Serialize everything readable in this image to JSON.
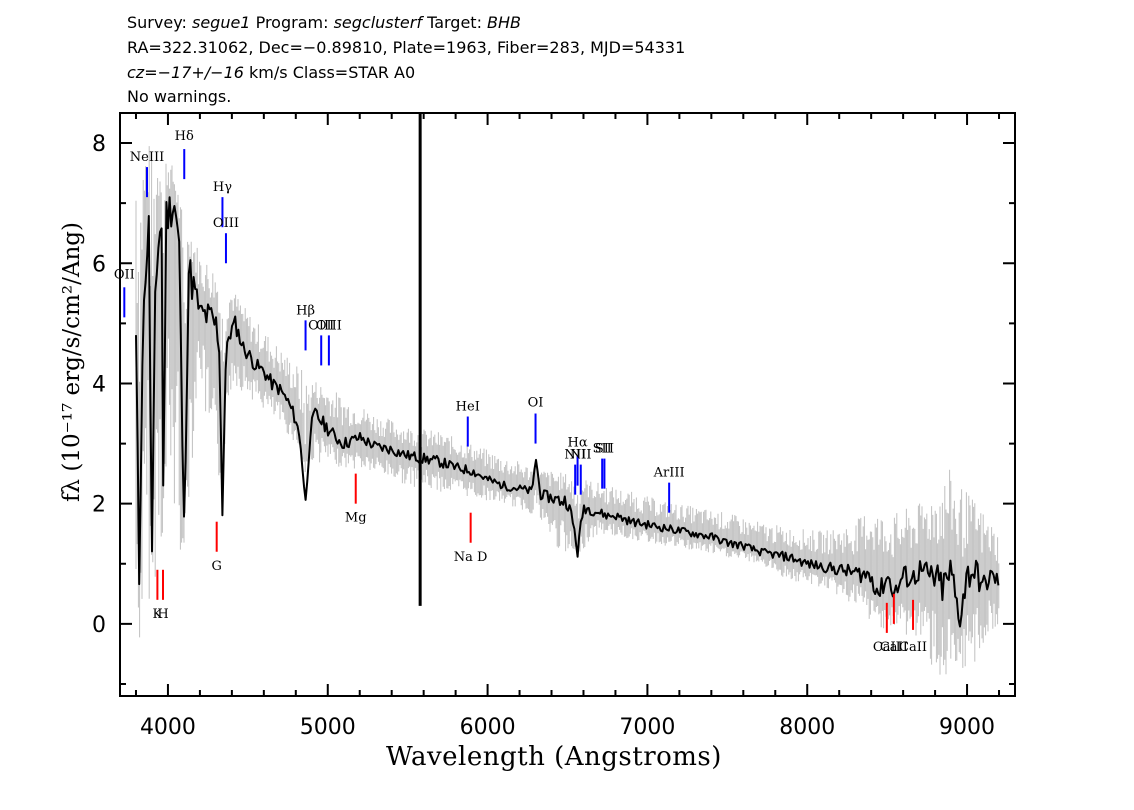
{
  "header": {
    "survey_label": "Survey:",
    "survey": "segue1",
    "program_label": "Program:",
    "program": "segclusterf",
    "target_label": "Target:",
    "target": "BHB",
    "line2": "RA=322.31062, Dec=−0.89810, Plate=1963, Fiber=283, MJD=54331",
    "cz_label": "cz=",
    "cz": "−17+/−16",
    "cz_rest": "km/s Class=STAR A0",
    "line4": "No warnings."
  },
  "chart_data": {
    "type": "line",
    "xlabel": "Wavelength (Angstroms)",
    "ylabel": "fλ (10⁻¹⁷ erg/s/cm²/Ang)",
    "xlim": [
      3700,
      9300
    ],
    "ylim": [
      -1.2,
      8.5
    ],
    "xticks": [
      4000,
      5000,
      6000,
      7000,
      8000,
      9000
    ],
    "yticks": [
      0,
      2,
      4,
      6,
      8
    ],
    "series": [
      {
        "role": "flux",
        "color": "#000000",
        "x": [
          3800,
          3820,
          3840,
          3860,
          3880,
          3900,
          3920,
          3940,
          3960,
          3970,
          3990,
          4010,
          4040,
          4070,
          4100,
          4130,
          4160,
          4200,
          4250,
          4290,
          4320,
          4340,
          4360,
          4380,
          4420,
          4470,
          4500,
          4550,
          4600,
          4650,
          4700,
          4750,
          4800,
          4830,
          4861,
          4890,
          4920,
          4950,
          5000,
          5050,
          5100,
          5200,
          5300,
          5400,
          5500,
          5600,
          5700,
          5800,
          5900,
          6000,
          6100,
          6200,
          6280,
          6300,
          6330,
          6400,
          6450,
          6500,
          6540,
          6563,
          6600,
          6650,
          6700,
          6750,
          6800,
          6900,
          7000,
          7100,
          7200,
          7300,
          7400,
          7500,
          7600,
          7700,
          7800,
          7900,
          8000,
          8100,
          8200,
          8300,
          8400,
          8450,
          8500,
          8550,
          8600,
          8662,
          8700,
          8750,
          8800,
          8850,
          8900,
          8950,
          9000,
          9050,
          9100,
          9150,
          9200
        ],
        "y": [
          4.7,
          0.8,
          4.5,
          5.9,
          6.6,
          1.1,
          5.2,
          6.4,
          6.7,
          2.2,
          6.8,
          6.9,
          7.0,
          6.3,
          1.5,
          5.9,
          5.6,
          5.2,
          5.1,
          5.0,
          4.8,
          1.9,
          4.2,
          4.8,
          5.0,
          4.6,
          4.5,
          4.3,
          4.2,
          4.0,
          3.9,
          3.7,
          3.4,
          3.0,
          2.0,
          3.2,
          3.5,
          3.4,
          3.25,
          3.1,
          3.0,
          3.1,
          2.95,
          2.9,
          2.8,
          2.75,
          2.7,
          2.6,
          2.55,
          2.4,
          2.3,
          2.25,
          2.2,
          2.8,
          2.15,
          2.1,
          2.05,
          2.05,
          1.6,
          1.2,
          1.95,
          1.9,
          1.85,
          1.8,
          1.8,
          1.7,
          1.65,
          1.6,
          1.55,
          1.5,
          1.45,
          1.35,
          1.3,
          1.2,
          1.15,
          1.1,
          1.0,
          0.95,
          0.9,
          0.85,
          0.8,
          0.5,
          0.8,
          0.5,
          0.8,
          0.75,
          0.9,
          0.8,
          0.75,
          0.6,
          0.85,
          0.1,
          0.8,
          0.9,
          0.6,
          0.8,
          0.7
        ]
      },
      {
        "role": "noise-envelope",
        "color": "#c0c0c0",
        "x": [
          3800,
          3900,
          4000,
          4100,
          4200,
          4300,
          4400,
          4500,
          4700,
          4900,
          5100,
          5300,
          5500,
          5700,
          5900,
          6100,
          6300,
          6500,
          6700,
          6900,
          7100,
          7300,
          7500,
          7700,
          7900,
          8100,
          8300,
          8400,
          8500,
          8600,
          8700,
          8800,
          8900,
          9000,
          9100,
          9200
        ],
        "upper": [
          8.2,
          8.0,
          7.9,
          6.9,
          6.2,
          5.9,
          5.6,
          5.2,
          4.6,
          4.1,
          3.8,
          3.5,
          3.3,
          3.2,
          3.0,
          2.8,
          2.6,
          2.5,
          2.35,
          2.2,
          2.05,
          1.95,
          1.85,
          1.7,
          1.6,
          1.55,
          1.7,
          2.0,
          1.8,
          1.9,
          2.0,
          2.3,
          2.6,
          2.2,
          1.9,
          1.5
        ],
        "lower": [
          -0.6,
          0.5,
          1.7,
          1.0,
          4.3,
          1.6,
          4.0,
          3.8,
          3.3,
          2.7,
          2.6,
          2.5,
          2.3,
          2.2,
          2.1,
          2.0,
          1.8,
          1.0,
          1.5,
          1.4,
          1.3,
          1.2,
          1.1,
          1.0,
          0.7,
          0.6,
          0.3,
          0.0,
          -0.1,
          -0.2,
          -0.3,
          -0.8,
          -1.2,
          -0.9,
          -0.4,
          -0.1
        ]
      }
    ],
    "spike": {
      "x": 5578,
      "y_low": 0.3,
      "y_high": 8.5
    },
    "emission_lines": [
      {
        "label": "OII",
        "x": 3727,
        "y_low": 5.1,
        "y_high": 5.6,
        "label_y": 5.75,
        "color": "#0000ff"
      },
      {
        "label": "NeIII",
        "x": 3869,
        "y_low": 7.1,
        "y_high": 7.6,
        "label_y": 7.7,
        "color": "#0000ff"
      },
      {
        "label": "Hδ",
        "x": 4102,
        "y_low": 7.4,
        "y_high": 7.9,
        "label_y": 8.05,
        "color": "#0000ff"
      },
      {
        "label": "Hγ",
        "x": 4341,
        "y_low": 6.6,
        "y_high": 7.1,
        "label_y": 7.2,
        "color": "#0000ff"
      },
      {
        "label": "OIII",
        "x": 4363,
        "y_low": 6.0,
        "y_high": 6.5,
        "label_y": 6.6,
        "color": "#0000ff"
      },
      {
        "label": "Hβ",
        "x": 4861,
        "y_low": 4.55,
        "y_high": 5.05,
        "label_y": 5.15,
        "color": "#0000ff"
      },
      {
        "label": "OIII",
        "x": 4959,
        "y_low": 4.3,
        "y_high": 4.8,
        "label_y": 4.9,
        "color": "#0000ff"
      },
      {
        "label": "OIII",
        "x": 5007,
        "y_low": 4.3,
        "y_high": 4.8,
        "label_y": 4.9,
        "color": "#0000ff"
      },
      {
        "label": "HeI",
        "x": 5876,
        "y_low": 2.95,
        "y_high": 3.45,
        "label_y": 3.55,
        "color": "#0000ff"
      },
      {
        "label": "OI",
        "x": 6300,
        "y_low": 3.0,
        "y_high": 3.5,
        "label_y": 3.62,
        "color": "#0000ff"
      },
      {
        "label": "NII",
        "x": 6548,
        "y_low": 2.15,
        "y_high": 2.65,
        "label_y": 2.75,
        "color": "#0000ff"
      },
      {
        "label": "Hα",
        "x": 6563,
        "y_low": 2.3,
        "y_high": 2.8,
        "label_y": 2.95,
        "color": "#0000ff"
      },
      {
        "label": "NII",
        "x": 6583,
        "y_low": 2.15,
        "y_high": 2.65,
        "label_y": 2.75,
        "color": "#0000ff"
      },
      {
        "label": "SII",
        "x": 6717,
        "y_low": 2.25,
        "y_high": 2.75,
        "label_y": 2.85,
        "color": "#0000ff"
      },
      {
        "label": "SII",
        "x": 6731,
        "y_low": 2.25,
        "y_high": 2.75,
        "label_y": 2.85,
        "color": "#0000ff"
      },
      {
        "label": "ArIII",
        "x": 7136,
        "y_low": 1.85,
        "y_high": 2.35,
        "label_y": 2.45,
        "color": "#0000ff"
      }
    ],
    "absorption_lines": [
      {
        "label": "K",
        "x": 3934,
        "y_low": 0.4,
        "y_high": 0.9,
        "label_y": 0.1,
        "color": "#ff0000"
      },
      {
        "label": "H",
        "x": 3969,
        "y_low": 0.4,
        "y_high": 0.9,
        "label_y": 0.1,
        "color": "#ff0000"
      },
      {
        "label": "G",
        "x": 4305,
        "y_low": 1.2,
        "y_high": 1.7,
        "label_y": 0.9,
        "color": "#ff0000"
      },
      {
        "label": "Mg",
        "x": 5175,
        "y_low": 2.0,
        "y_high": 2.5,
        "label_y": 1.7,
        "color": "#ff0000"
      },
      {
        "label": "Na D",
        "x": 5894,
        "y_low": 1.35,
        "y_high": 1.85,
        "label_y": 1.05,
        "color": "#ff0000"
      },
      {
        "label": "CaII",
        "x": 8498,
        "y_low": -0.15,
        "y_high": 0.35,
        "label_y": -0.45,
        "color": "#ff0000"
      },
      {
        "label": "CaII",
        "x": 8542,
        "y_low": 0.0,
        "y_high": 0.5,
        "label_y": -0.45,
        "color": "#ff0000"
      },
      {
        "label": "CaII",
        "x": 8662,
        "y_low": -0.1,
        "y_high": 0.4,
        "label_y": -0.45,
        "color": "#ff0000"
      }
    ]
  }
}
